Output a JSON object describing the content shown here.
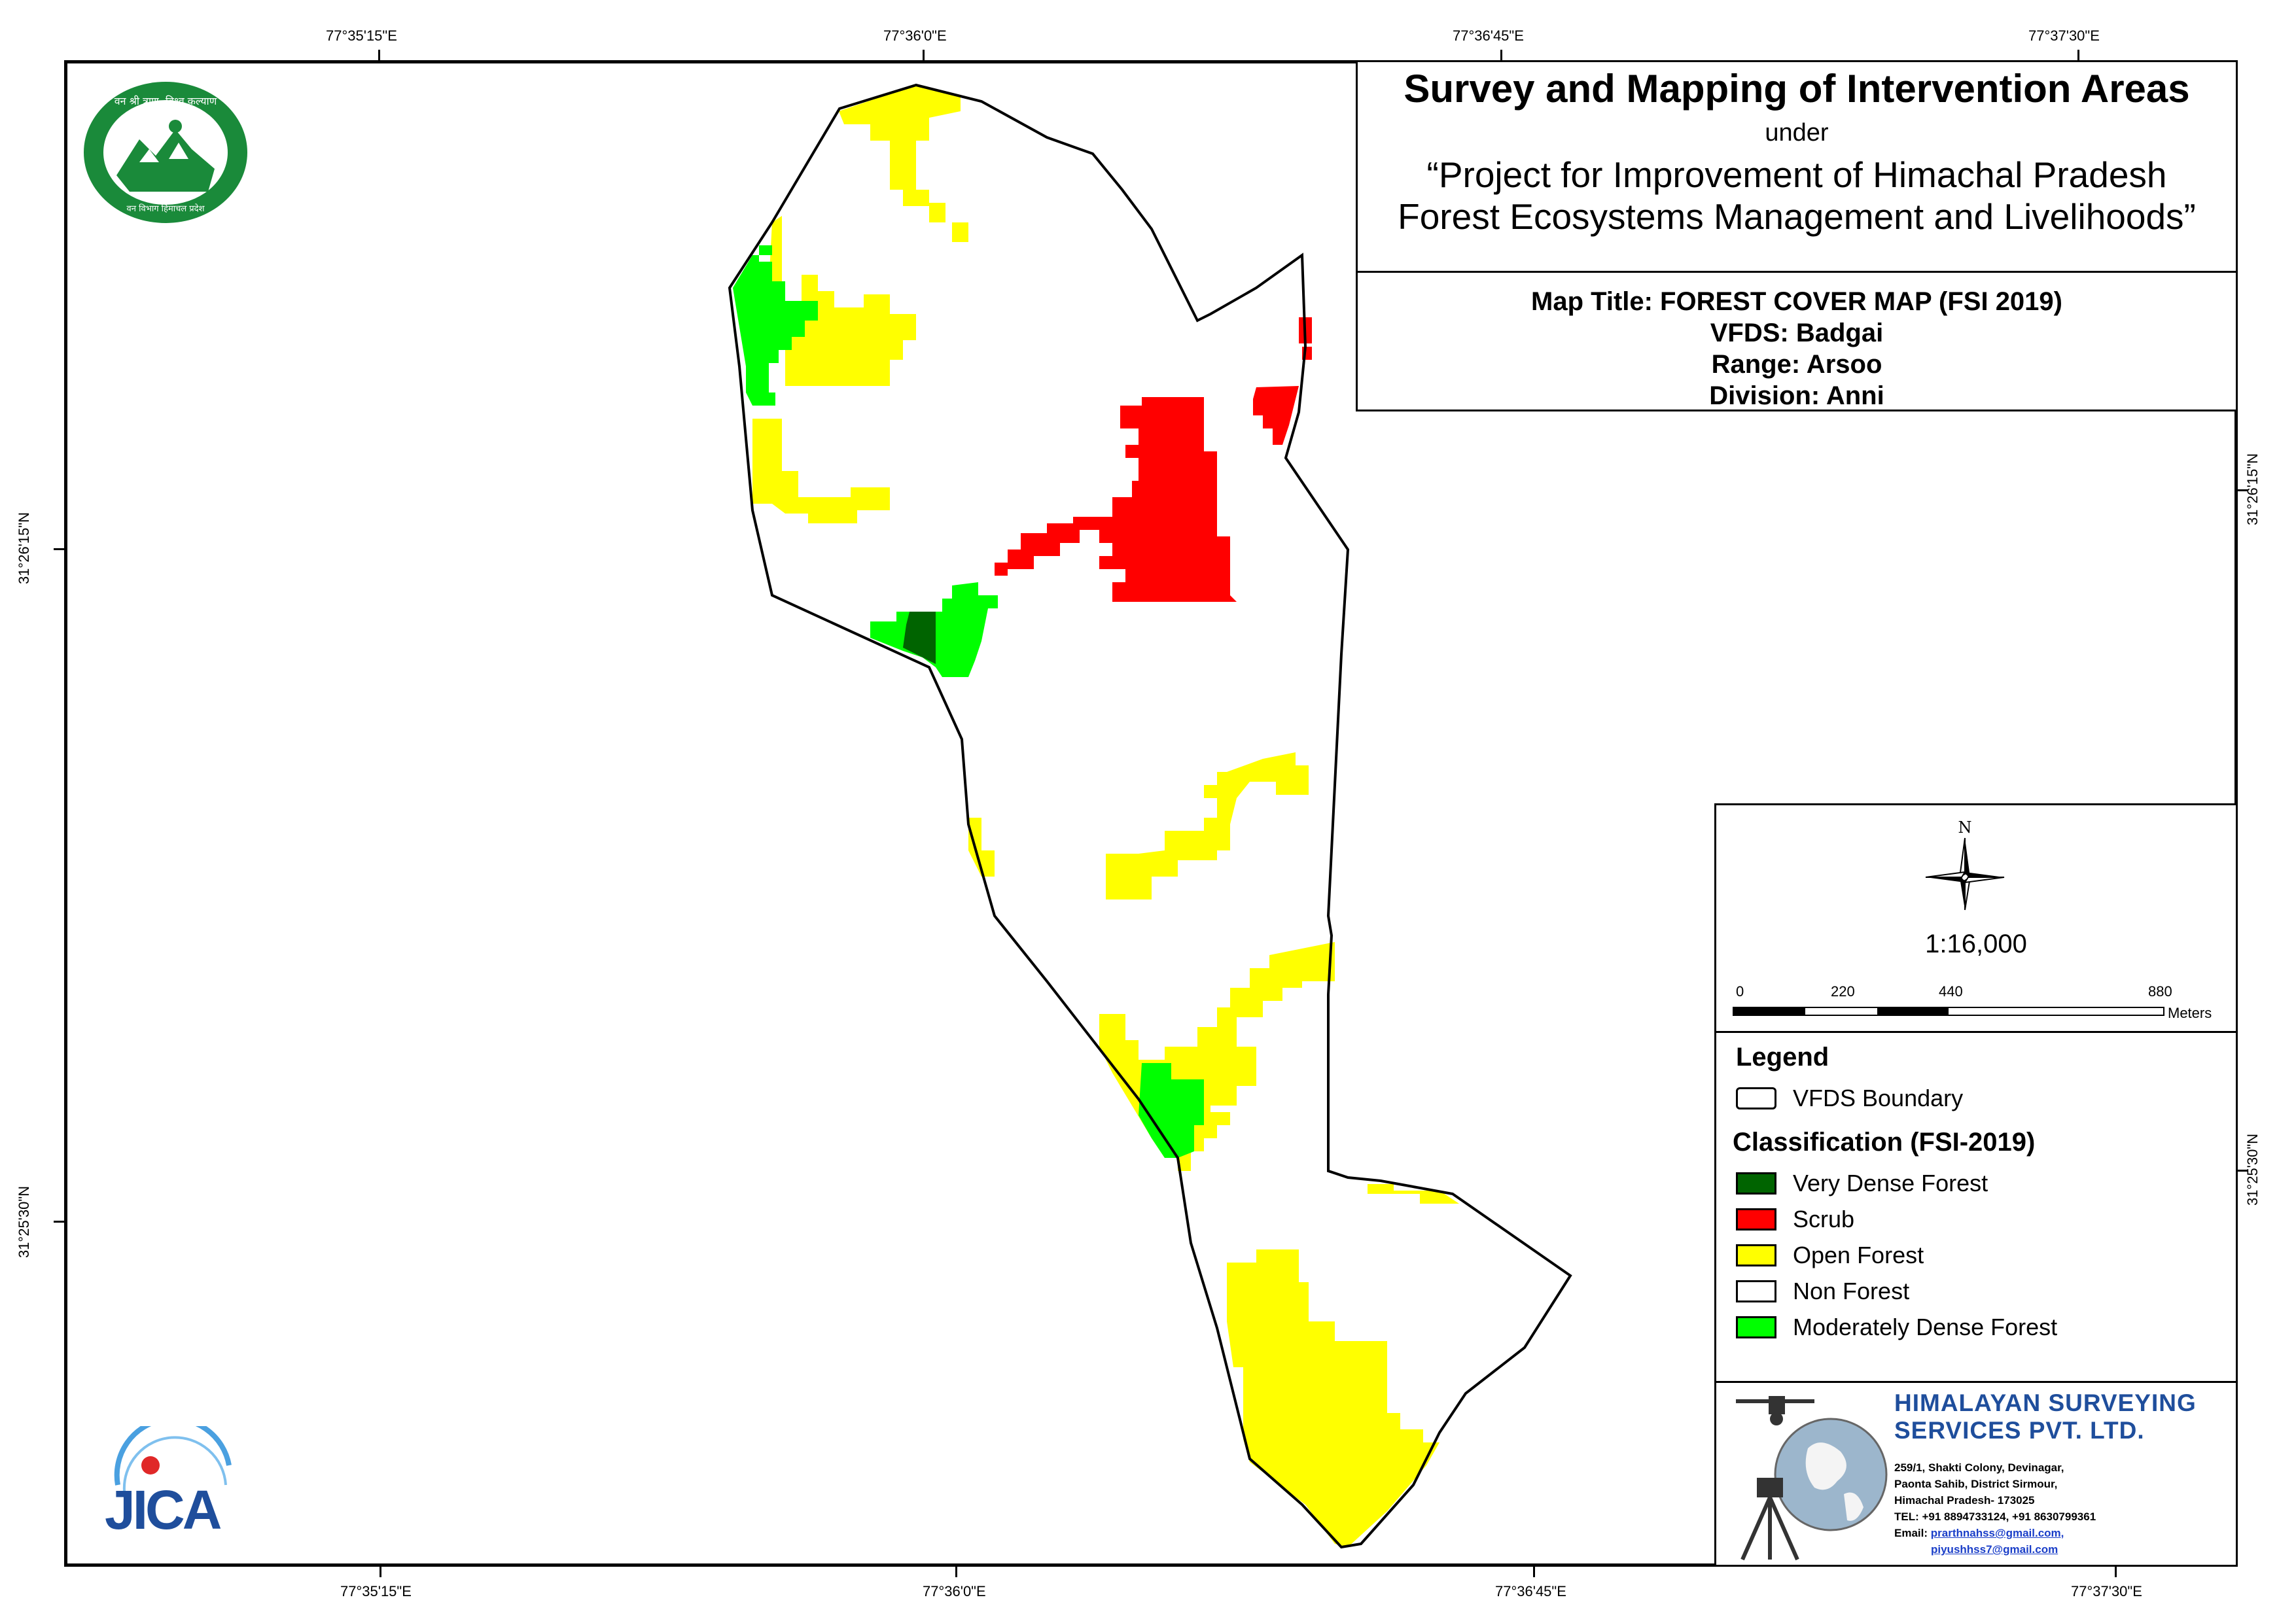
{
  "coordinates": {
    "top": [
      "77°35'15\"E",
      "77°36'0\"E",
      "77°36'45\"E",
      "77°37'30\"E"
    ],
    "bottom": [
      "77°35'15\"E",
      "77°36'0\"E",
      "77°36'45\"E",
      "77°37'30\"E"
    ],
    "left": [
      "31°26'15\"N",
      "31°25'30\"N"
    ],
    "right": [
      "31°26'15\"N",
      "31°25'30\"N"
    ]
  },
  "title": {
    "main": "Survey and Mapping of Intervention Areas",
    "under": "under",
    "project_line1": "“Project for Improvement of Himachal Pradesh",
    "project_line2": "Forest Ecosystems Management and Livelihoods”"
  },
  "info": {
    "map_title": "Map Title: FOREST COVER MAP (FSI 2019)",
    "vfds": "VFDS: Badgai",
    "range": "Range: Arsoo",
    "division": "Division: Anni"
  },
  "north_arrow": {
    "label": "N"
  },
  "scale": {
    "ratio": "1:16,000",
    "labels": [
      "0",
      "220",
      "440",
      "880"
    ],
    "unit": "Meters"
  },
  "legend": {
    "title": "Legend",
    "boundary_label": "VFDS Boundary",
    "classification_title": "Classification (FSI-2019)",
    "classes": [
      {
        "label": "Very Dense Forest",
        "color": "#006400"
      },
      {
        "label": "Scrub",
        "color": "#ff0000"
      },
      {
        "label": "Open Forest",
        "color": "#ffff00"
      },
      {
        "label": "Non Forest",
        "color": "#ffffff"
      },
      {
        "label": "Moderately Dense Forest",
        "color": "#00ff00"
      }
    ]
  },
  "company": {
    "name_line1": "HIMALAYAN SURVEYING",
    "name_line2": "SERVICES PVT. LTD.",
    "address_lines": [
      "259/1, Shakti Colony, Devinagar,",
      "Paonta Sahib, District Sirmour,",
      "Himachal Pradesh- 173025",
      "TEL: +91 8894733124, +91 8630799361"
    ],
    "email_label": "Email:",
    "emails": [
      "prarthnahss@gmail.com,",
      "piyushhss7@gmail.com"
    ]
  },
  "logos": {
    "forest_dept_text_top": "वन श्री त्राण, विश्व कल्याण",
    "forest_dept_text_bottom": "वन विभाग हिमाचल प्रदेश",
    "jica": "JICA"
  }
}
